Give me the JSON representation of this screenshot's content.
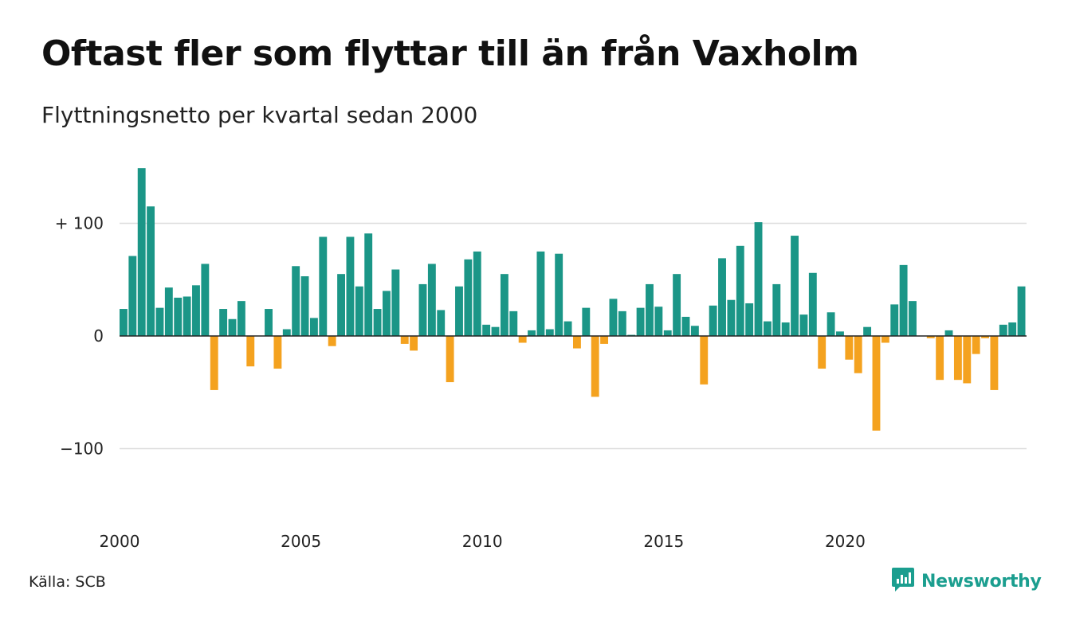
{
  "title": "Oftast fler som flyttar till än från Vaxholm",
  "subtitle": "Flyttningsnetto per kvartal sedan 2000",
  "source": "Källa: SCB",
  "brand": {
    "name": "Newsworthy",
    "icon": "newsworthy-logo-icon"
  },
  "colors": {
    "positive": "#1b9687",
    "negative": "#f4a21f",
    "gridline": "#dddddd",
    "zero_line": "#222222"
  },
  "chart_data": {
    "type": "bar",
    "title": "Oftast fler som flyttar till än från Vaxholm",
    "subtitle": "Flyttningsnetto per kvartal sedan 2000",
    "xlabel": "",
    "ylabel": "",
    "ylim": [
      -150,
      150
    ],
    "grid": true,
    "legend": "none",
    "y_ticks": [
      {
        "value": 100,
        "label": "+ 100"
      },
      {
        "value": 0,
        "label": "0"
      },
      {
        "value": -100,
        "label": "−100"
      }
    ],
    "x_ticks": [
      {
        "index": 0,
        "label": "2000"
      },
      {
        "index": 20,
        "label": "2005"
      },
      {
        "index": 40,
        "label": "2010"
      },
      {
        "index": 60,
        "label": "2015"
      },
      {
        "index": 80,
        "label": "2020"
      }
    ],
    "categories": [
      "2000 K1",
      "2000 K2",
      "2000 K3",
      "2000 K4",
      "2001 K1",
      "2001 K2",
      "2001 K3",
      "2001 K4",
      "2002 K1",
      "2002 K2",
      "2002 K3",
      "2002 K4",
      "2003 K1",
      "2003 K2",
      "2003 K3",
      "2003 K4",
      "2004 K1",
      "2004 K2",
      "2004 K3",
      "2004 K4",
      "2005 K1",
      "2005 K2",
      "2005 K3",
      "2005 K4",
      "2006 K1",
      "2006 K2",
      "2006 K3",
      "2006 K4",
      "2007 K1",
      "2007 K2",
      "2007 K3",
      "2007 K4",
      "2008 K1",
      "2008 K2",
      "2008 K3",
      "2008 K4",
      "2009 K1",
      "2009 K2",
      "2009 K3",
      "2009 K4",
      "2010 K1",
      "2010 K2",
      "2010 K3",
      "2010 K4",
      "2011 K1",
      "2011 K2",
      "2011 K3",
      "2011 K4",
      "2012 K1",
      "2012 K2",
      "2012 K3",
      "2012 K4",
      "2013 K1",
      "2013 K2",
      "2013 K3",
      "2013 K4",
      "2014 K1",
      "2014 K2",
      "2014 K3",
      "2014 K4",
      "2015 K1",
      "2015 K2",
      "2015 K3",
      "2015 K4",
      "2016 K1",
      "2016 K2",
      "2016 K3",
      "2016 K4",
      "2017 K1",
      "2017 K2",
      "2017 K3",
      "2017 K4",
      "2018 K1",
      "2018 K2",
      "2018 K3",
      "2018 K4",
      "2019 K1",
      "2019 K2",
      "2019 K3",
      "2019 K4",
      "2020 K1",
      "2020 K2",
      "2020 K3",
      "2020 K4",
      "2021 K1",
      "2021 K2",
      "2021 K3",
      "2021 K4",
      "2022 K1",
      "2022 K2",
      "2022 K3",
      "2022 K4",
      "2023 K1",
      "2023 K2",
      "2023 K3",
      "2023 K4",
      "2024 K1",
      "2024 K2",
      "2024 K3",
      "2024 K4"
    ],
    "values": [
      24,
      71,
      149,
      115,
      25,
      43,
      34,
      35,
      45,
      64,
      -48,
      24,
      15,
      31,
      -27,
      0,
      24,
      -29,
      6,
      62,
      53,
      16,
      88,
      -9,
      55,
      88,
      44,
      91,
      24,
      40,
      59,
      -7,
      -13,
      46,
      64,
      23,
      -41,
      44,
      68,
      75,
      10,
      8,
      55,
      22,
      -6,
      5,
      75,
      6,
      73,
      13,
      -11,
      25,
      -54,
      -7,
      33,
      22,
      1,
      25,
      46,
      26,
      5,
      55,
      17,
      9,
      -43,
      27,
      69,
      32,
      80,
      29,
      101,
      13,
      46,
      12,
      89,
      19,
      56,
      -29,
      21,
      4,
      -21,
      -33,
      8,
      -84,
      -6,
      28,
      63,
      31,
      0,
      -2,
      -39,
      5,
      -39,
      -42,
      -16,
      -2,
      -48,
      10,
      12,
      44
    ]
  }
}
